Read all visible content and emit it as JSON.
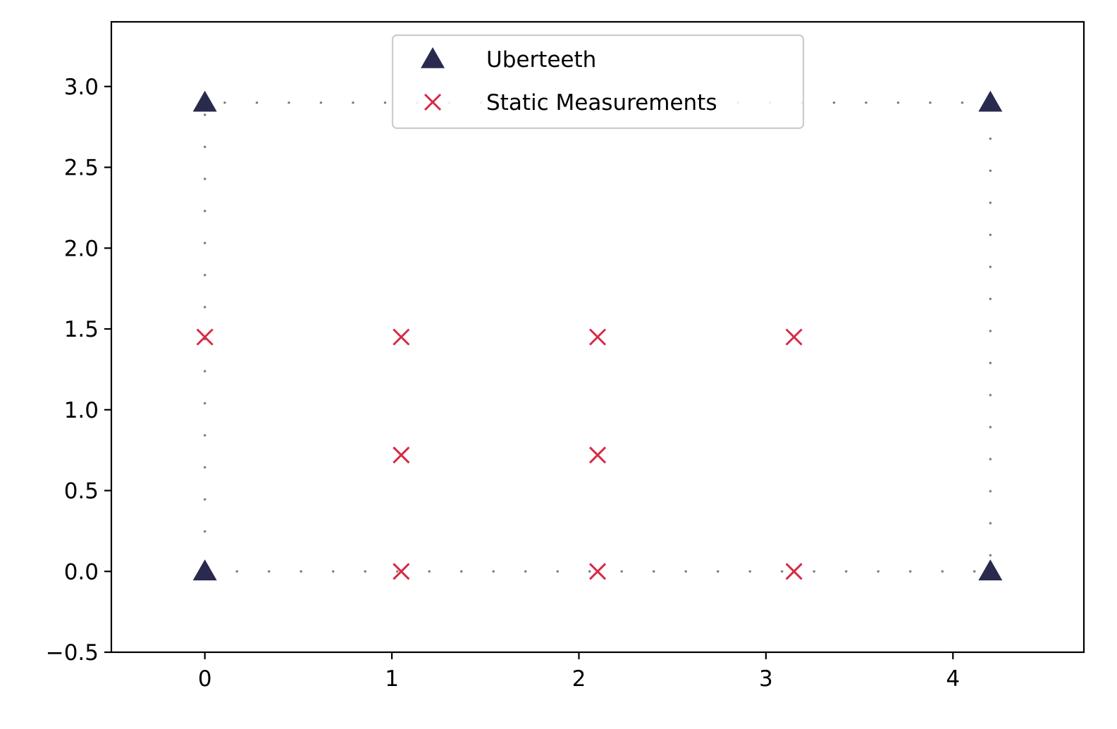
{
  "chart_data": {
    "type": "scatter",
    "title": "",
    "xlabel": "",
    "ylabel": "",
    "xlim": [
      -0.5,
      4.7
    ],
    "ylim": [
      -0.5,
      3.4
    ],
    "xticks": [
      0,
      1,
      2,
      3,
      4
    ],
    "xtick_labels": [
      "0",
      "1",
      "2",
      "3",
      "4"
    ],
    "yticks": [
      -0.5,
      0.0,
      0.5,
      1.0,
      1.5,
      2.0,
      2.5,
      3.0
    ],
    "ytick_labels": [
      "−0.5",
      "0.0",
      "0.5",
      "1.0",
      "1.5",
      "2.0",
      "2.5",
      "3.0"
    ],
    "grid": false,
    "legend_position": "top-center",
    "series": [
      {
        "name": "Uberteeth",
        "marker": "triangle",
        "color": "#2a2a4f",
        "x": [
          0,
          4.2,
          0,
          4.2
        ],
        "y": [
          0,
          0,
          2.9,
          2.9
        ]
      },
      {
        "name": "Static Measurements",
        "marker": "x",
        "color": "#d62a45",
        "x": [
          0,
          1.05,
          2.1,
          3.15,
          1.05,
          2.1,
          1.05,
          2.1,
          3.15
        ],
        "y": [
          1.45,
          1.45,
          1.45,
          1.45,
          0.72,
          0.72,
          0,
          0,
          0
        ]
      }
    ],
    "boundary": {
      "style": "dotted",
      "color": "#808080",
      "x": [
        0,
        4.2,
        4.2,
        0,
        0
      ],
      "y": [
        0,
        0,
        2.9,
        2.9,
        0
      ]
    }
  }
}
